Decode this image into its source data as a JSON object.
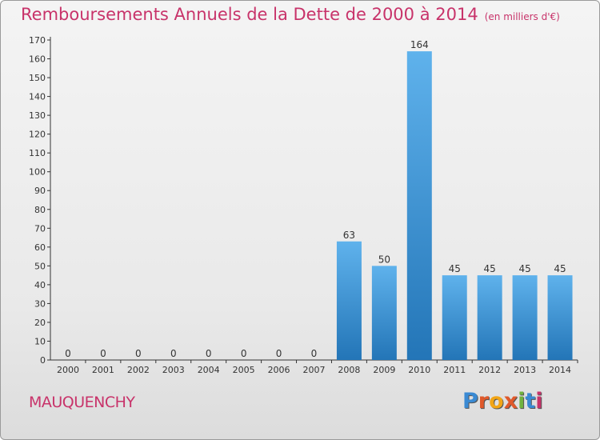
{
  "title": "Remboursements Annuels de la Dette de 2000 à 2014",
  "unit_note": "(en milliers d'€)",
  "commune": "MAUQUENCHY",
  "logo": {
    "text": "Proxiti",
    "letter_colors": [
      "#3a8ad3",
      "#e0592b",
      "#f2a516",
      "#e0592b",
      "#6fb23e",
      "#3a8ad3",
      "#c8336a"
    ]
  },
  "colors": {
    "bar_top": "#5fb2ec",
    "bar_bottom": "#2375b7",
    "accent": "#c8336a"
  },
  "chart_data": {
    "type": "bar",
    "categories": [
      "2000",
      "2001",
      "2002",
      "2003",
      "2004",
      "2005",
      "2006",
      "2007",
      "2008",
      "2009",
      "2010",
      "2011",
      "2012",
      "2013",
      "2014"
    ],
    "values": [
      0,
      0,
      0,
      0,
      0,
      0,
      0,
      0,
      63,
      50,
      164,
      45,
      45,
      45,
      45
    ],
    "title": "Remboursements Annuels de la Dette de 2000 à 2014",
    "xlabel": "",
    "ylabel": "",
    "ylim": [
      0,
      170
    ],
    "yticks": [
      0,
      10,
      20,
      30,
      40,
      50,
      60,
      70,
      80,
      90,
      100,
      110,
      120,
      130,
      140,
      150,
      160,
      170
    ],
    "grid": false,
    "data_labels": true
  }
}
